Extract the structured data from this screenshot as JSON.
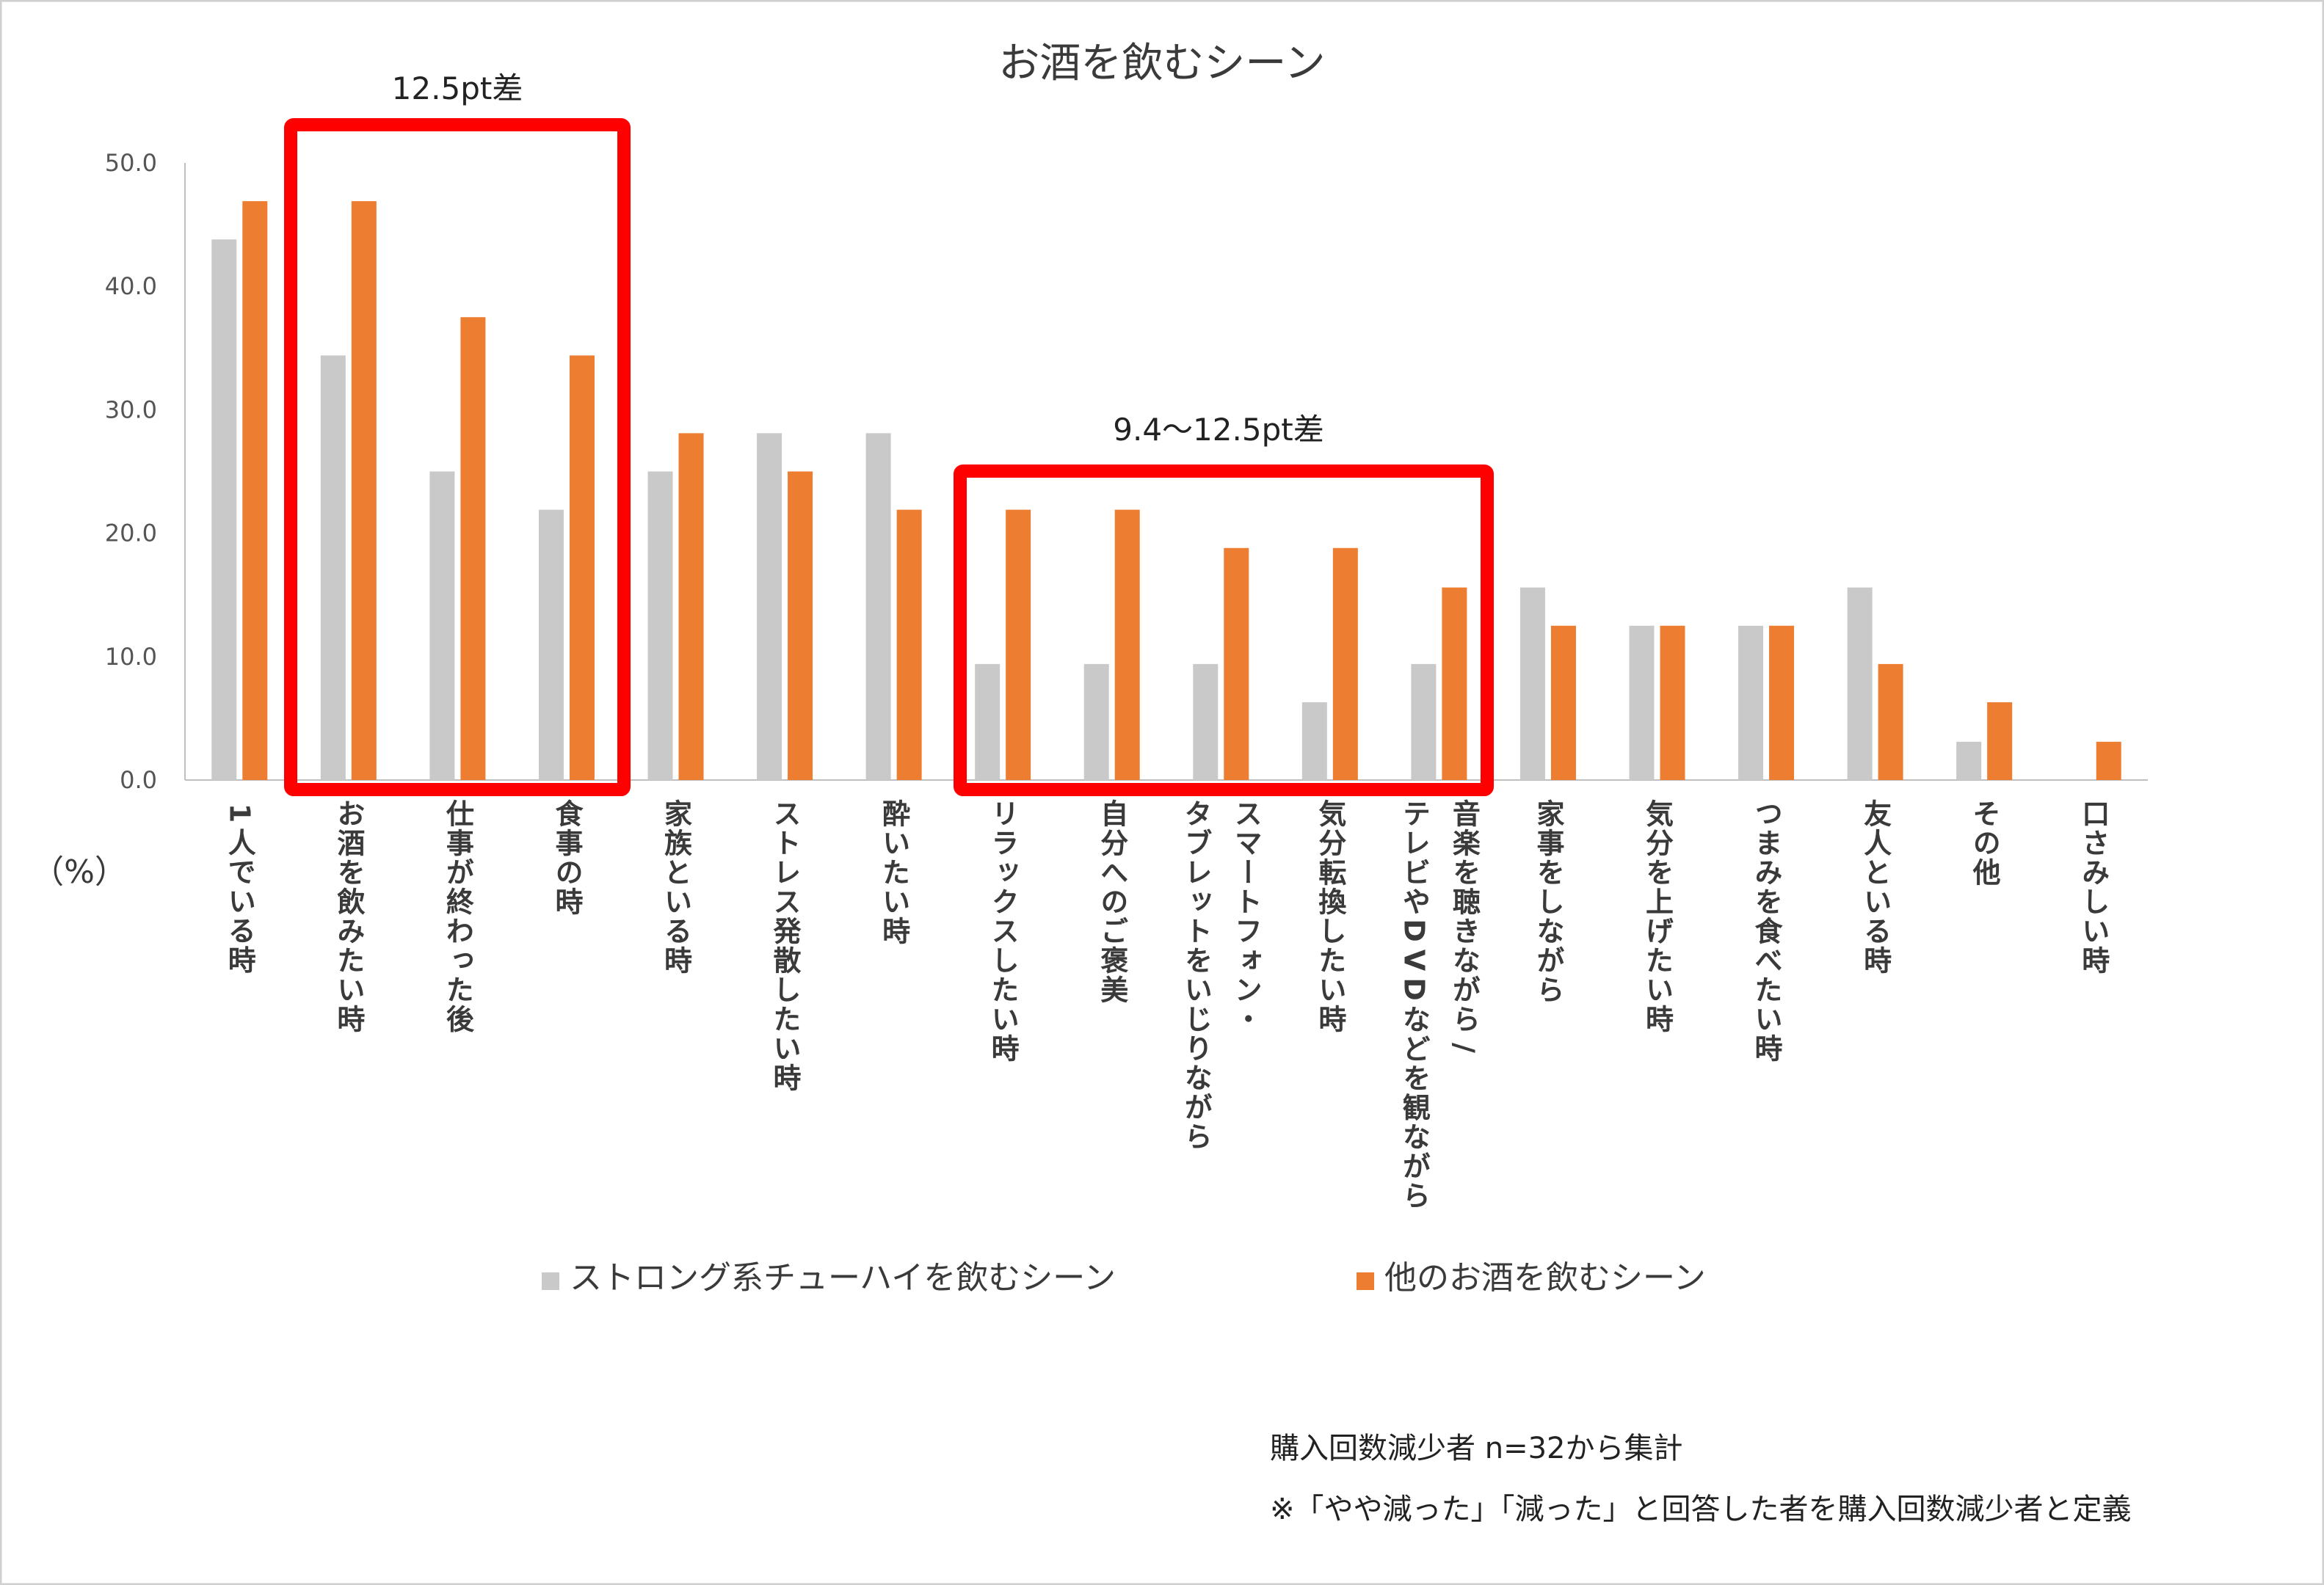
{
  "chart_data": {
    "type": "bar",
    "title": "お酒を飲むシーン",
    "ylabel": "（%）",
    "ylim": [
      0,
      50
    ],
    "yticks": [
      "0.0",
      "10.0",
      "20.0",
      "30.0",
      "40.0",
      "50.0"
    ],
    "categories": [
      [
        "1人でいる時"
      ],
      [
        "お酒を飲みたい時"
      ],
      [
        "仕事が終わった後"
      ],
      [
        "食事の時"
      ],
      [
        "家族といる時"
      ],
      [
        "ストレス発散したい時"
      ],
      [
        "酔いたい時"
      ],
      [
        "リラックスしたい時"
      ],
      [
        "自分へのご褒美"
      ],
      [
        "スマートフォン・",
        "タブレットをいじりながら"
      ],
      [
        "気分転換したい時"
      ],
      [
        "音楽を聴きながら/",
        "テレビやDVDなどを観ながら"
      ],
      [
        "家事をしながら"
      ],
      [
        "気分を上げたい時"
      ],
      [
        "つまみを食べたい時"
      ],
      [
        "友人といる時"
      ],
      [
        "その他"
      ],
      [
        "口さみしい時"
      ]
    ],
    "series": [
      {
        "name": "ストロング系チューハイを飲むシーン",
        "color": "#c9c9c9",
        "values": [
          43.8,
          34.4,
          25.0,
          21.9,
          25.0,
          28.1,
          28.1,
          9.4,
          9.4,
          9.4,
          6.3,
          9.4,
          15.6,
          12.5,
          12.5,
          15.6,
          3.1,
          0.0
        ]
      },
      {
        "name": "他のお酒を飲むシーン",
        "color": "#ed7d31",
        "values": [
          46.9,
          46.9,
          37.5,
          34.4,
          28.1,
          25.0,
          21.9,
          21.9,
          21.9,
          18.8,
          18.8,
          15.6,
          12.5,
          12.5,
          12.5,
          9.4,
          6.3,
          3.1
        ]
      }
    ],
    "annotations": [
      {
        "label": "12.5pt差",
        "from_category": 1,
        "to_category": 3,
        "color": "#ff0000"
      },
      {
        "label": "9.4〜12.5pt差",
        "from_category": 7,
        "to_category": 11,
        "color": "#ff0000"
      }
    ],
    "notes": [
      "購入回数減少者 n=32から集計",
      "※「やや減った」「減った」と回答した者を購入回数減少者と定義"
    ],
    "legend_position": "bottom"
  }
}
